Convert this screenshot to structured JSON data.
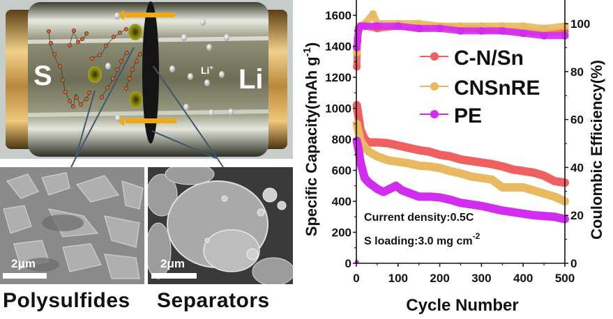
{
  "figure": {
    "schematic": {
      "cathode_label": "S",
      "anode_label": "Li",
      "ion_label": "Li",
      "ion_charge": "+"
    },
    "sem_images": [
      {
        "scale_bar": "2μm",
        "caption": "Polysulfides"
      },
      {
        "scale_bar": "2μm",
        "caption": "Separators"
      }
    ]
  },
  "colors": {
    "C-N/Sn": "#f06060",
    "CNSnRE": "#e8b95e",
    "PE": "#d22cf0"
  },
  "chart_data": {
    "type": "scatter",
    "title": "",
    "xlabel": "Cycle Number",
    "ylabel": "Specific Capacity(mAh g",
    "ylabel_sup": "-1",
    "ylabel_close": ")",
    "y2label": "Coulombic Efficiency(%)",
    "xlim": [
      0,
      500
    ],
    "ylim": [
      0,
      1700
    ],
    "y2lim": [
      0,
      109
    ],
    "xticks": [
      0,
      100,
      200,
      300,
      400,
      500
    ],
    "yticks": [
      0,
      200,
      400,
      600,
      800,
      1000,
      1200,
      1400,
      1600
    ],
    "y2ticks": [
      0,
      20,
      40,
      60,
      80,
      100
    ],
    "legend_position": "right-upper",
    "annotations": [
      {
        "text": "Current density:0.5C"
      },
      {
        "text": "S loading:3.0 mg cm",
        "sup": "-2"
      }
    ],
    "series": [
      {
        "name": "C-N/Sn",
        "axis": "capacity",
        "x": [
          1,
          5,
          10,
          20,
          30,
          50,
          75,
          100,
          125,
          150,
          175,
          200,
          225,
          250,
          275,
          300,
          325,
          350,
          375,
          400,
          425,
          450,
          475,
          500
        ],
        "values": [
          1020,
          950,
          860,
          800,
          780,
          780,
          775,
          760,
          745,
          730,
          720,
          700,
          690,
          670,
          660,
          650,
          640,
          625,
          605,
          595,
          585,
          565,
          530,
          520
        ]
      },
      {
        "name": "CNSnRE",
        "axis": "capacity",
        "x": [
          1,
          5,
          10,
          20,
          30,
          50,
          75,
          100,
          125,
          150,
          175,
          200,
          225,
          250,
          275,
          300,
          325,
          350,
          375,
          400,
          425,
          450,
          475,
          500
        ],
        "values": [
          900,
          850,
          790,
          750,
          720,
          690,
          665,
          655,
          645,
          630,
          625,
          615,
          595,
          580,
          560,
          550,
          540,
          490,
          490,
          490,
          470,
          450,
          430,
          400
        ]
      },
      {
        "name": "PE",
        "axis": "capacity",
        "x": [
          1,
          5,
          10,
          20,
          30,
          50,
          65,
          80,
          95,
          110,
          125,
          150,
          175,
          200,
          225,
          250,
          275,
          300,
          325,
          350,
          375,
          400,
          425,
          450,
          475,
          500
        ],
        "values": [
          790,
          740,
          650,
          550,
          520,
          480,
          460,
          480,
          500,
          470,
          455,
          430,
          430,
          425,
          410,
          390,
          380,
          370,
          355,
          340,
          330,
          320,
          310,
          305,
          300,
          285
        ]
      },
      {
        "name": "C-N/Sn",
        "axis": "efficiency",
        "x": [
          1,
          3,
          5,
          10,
          20,
          50,
          100,
          150,
          200,
          250,
          300,
          350,
          400,
          450,
          500
        ],
        "values": [
          82,
          94,
          98,
          99,
          99,
          98,
          99,
          98,
          99,
          98,
          98,
          97,
          97,
          96,
          97
        ]
      },
      {
        "name": "CNSnRE",
        "axis": "efficiency",
        "x": [
          1,
          3,
          5,
          10,
          20,
          40,
          50,
          100,
          150,
          200,
          250,
          300,
          350,
          400,
          450,
          500
        ],
        "values": [
          88,
          92,
          97,
          99,
          100,
          104,
          100,
          100,
          100,
          99,
          99,
          99,
          99,
          99,
          98,
          99
        ]
      },
      {
        "name": "PE",
        "axis": "efficiency",
        "x": [
          1,
          3,
          5,
          10,
          20,
          50,
          100,
          150,
          200,
          250,
          300,
          350,
          400,
          450,
          500
        ],
        "values": [
          90,
          93,
          97,
          99,
          99,
          99,
          99,
          98,
          98,
          97,
          97,
          97,
          96,
          95,
          95
        ]
      }
    ]
  }
}
